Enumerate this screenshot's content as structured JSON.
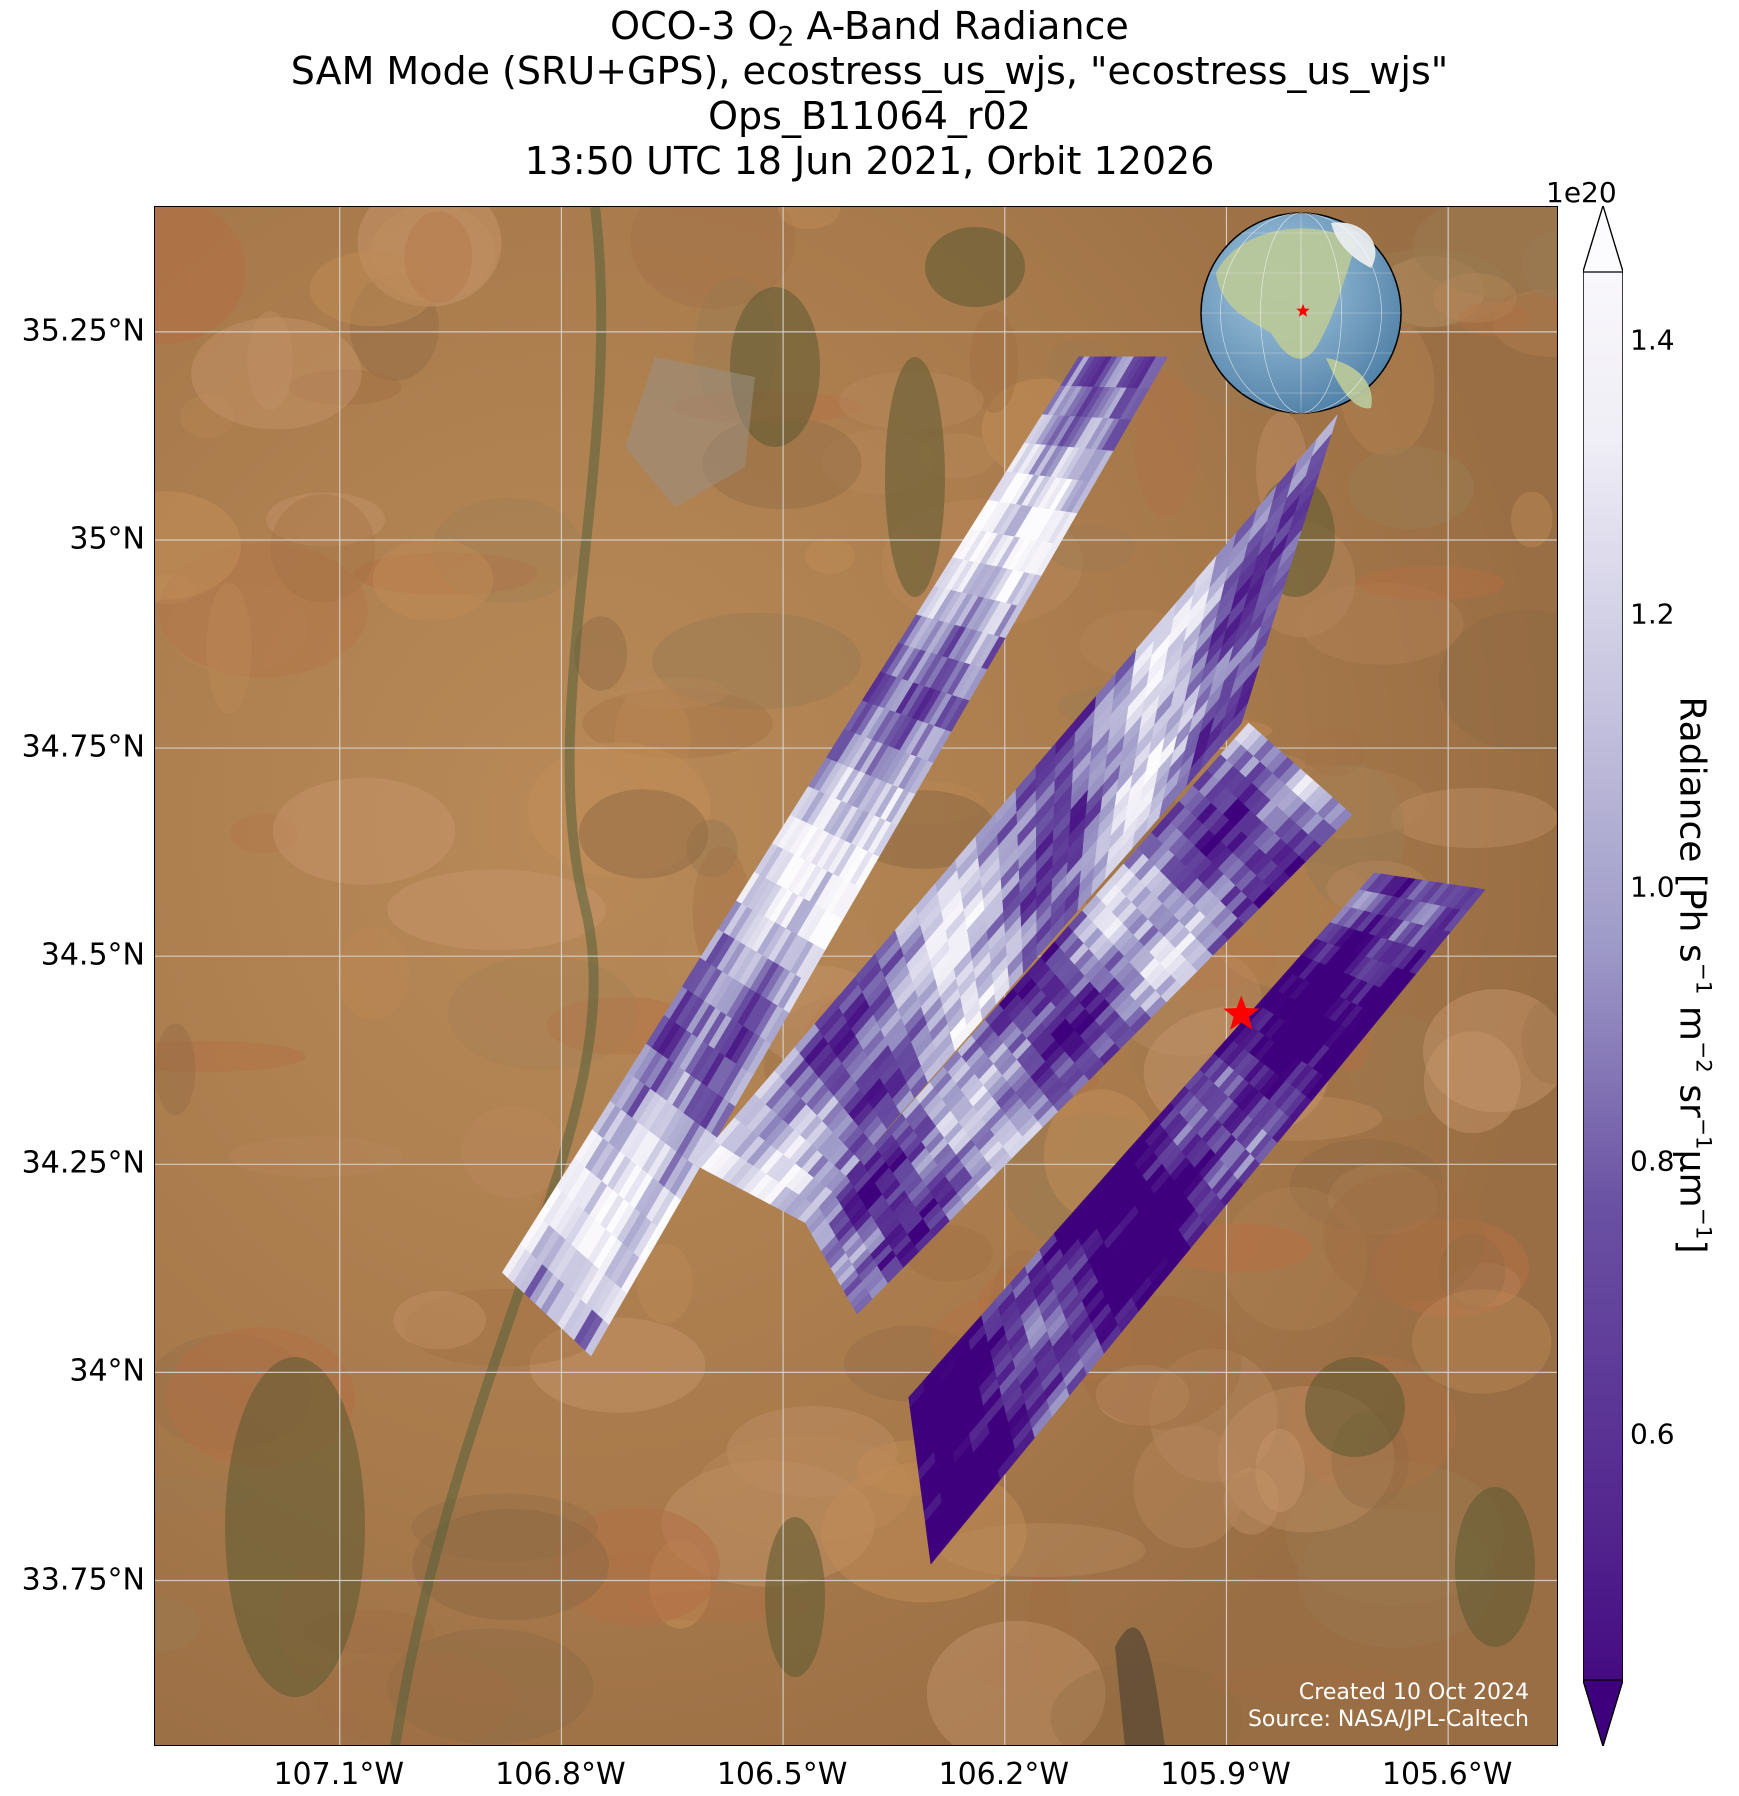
{
  "title": {
    "line1_pre": "OCO-3 O",
    "line1_sub": "2",
    "line1_post": " A-Band Radiance",
    "line2": "SAM Mode (SRU+GPS), ecostress_us_wjs, \"ecostress_us_wjs\"",
    "line3": "Ops_B11064_r02",
    "line4": "13:50 UTC 18 Jun 2021, Orbit 12026"
  },
  "map": {
    "lon_range": [
      -107.35,
      -105.45
    ],
    "lat_range": [
      33.55,
      35.4
    ],
    "lat_ticks": [
      {
        "value": 35.25,
        "label": "35.25°N"
      },
      {
        "value": 35.0,
        "label": "35°N"
      },
      {
        "value": 34.75,
        "label": "34.75°N"
      },
      {
        "value": 34.5,
        "label": "34.5°N"
      },
      {
        "value": 34.25,
        "label": "34.25°N"
      },
      {
        "value": 34.0,
        "label": "34°N"
      },
      {
        "value": 33.75,
        "label": "33.75°N"
      }
    ],
    "lon_ticks": [
      {
        "value": -107.1,
        "label": "107.1°W"
      },
      {
        "value": -106.8,
        "label": "106.8°W"
      },
      {
        "value": -106.5,
        "label": "106.5°W"
      },
      {
        "value": -106.2,
        "label": "106.2°W"
      },
      {
        "value": -105.9,
        "label": "105.9°W"
      },
      {
        "value": -105.6,
        "label": "105.6°W"
      }
    ],
    "target_star": {
      "lon": -105.88,
      "lat": 34.43,
      "color": "#ff0000"
    },
    "credit_line1": "Created 10 Oct 2024",
    "credit_line2": "Source: NASA/JPL-Caltech",
    "inset_globe": {
      "star_color": "#ff0000",
      "ocean_color": "#7fa9c9",
      "land_color": "#b8c79a"
    }
  },
  "colorbar": {
    "label_main": "Radiance [Ph s",
    "label_sup1": "−1",
    "label_mid1": " m",
    "label_sup2": "−2",
    "label_mid2": " sr",
    "label_sup3": "−1",
    "label_mid3": "μm",
    "label_sup4": "−1",
    "label_end": "]",
    "exponent": "1e20",
    "range": [
      0.42,
      1.45
    ],
    "extend": "both",
    "colormap": "Purples_r",
    "ticks": [
      {
        "value": 0.6,
        "label": "0.6"
      },
      {
        "value": 0.8,
        "label": "0.8"
      },
      {
        "value": 1.0,
        "label": "1.0"
      },
      {
        "value": 1.2,
        "label": "1.2"
      },
      {
        "value": 1.4,
        "label": "1.4"
      }
    ],
    "color_low": "#3f007d",
    "color_mid": "#9e9ac8",
    "color_high": "#fcfbfd"
  },
  "chart_data": {
    "type": "heatmap",
    "title": "OCO-3 O2 A-Band Radiance",
    "ylabel": "Radiance [Ph s−1 m−2 sr−1μm−1]",
    "value_scale": "1e20",
    "xlim": [
      -107.35,
      -105.45
    ],
    "ylim": [
      33.55,
      35.4
    ],
    "target": {
      "lon": -105.88,
      "lat": 34.43
    },
    "swaths": [
      {
        "name": "",
        "corners": [
          [
            -106.88,
            34.12
          ],
          [
            -106.1,
            35.22
          ],
          [
            -105.98,
            35.22
          ],
          [
            -106.76,
            34.02
          ]
        ],
        "dominant": 1.05
      },
      {
        "name": "",
        "corners": [
          [
            -106.62,
            34.25
          ],
          [
            -105.75,
            35.15
          ],
          [
            -105.88,
            34.78
          ],
          [
            -106.47,
            34.18
          ]
        ],
        "dominant": 0.95
      },
      {
        "name": "",
        "corners": [
          [
            -106.47,
            34.18
          ],
          [
            -105.87,
            34.78
          ],
          [
            -105.73,
            34.67
          ],
          [
            -106.4,
            34.07
          ]
        ],
        "dominant": 0.85
      },
      {
        "name": "",
        "corners": [
          [
            -106.33,
            33.97
          ],
          [
            -105.7,
            34.6
          ],
          [
            -105.55,
            34.58
          ],
          [
            -106.3,
            33.77
          ]
        ],
        "dominant": 0.5
      }
    ]
  }
}
